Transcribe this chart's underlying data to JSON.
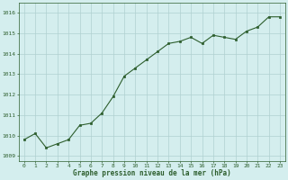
{
  "x": [
    0,
    1,
    2,
    3,
    4,
    5,
    6,
    7,
    8,
    9,
    10,
    11,
    12,
    13,
    14,
    15,
    16,
    17,
    18,
    19,
    20,
    21,
    22,
    23
  ],
  "y": [
    1009.8,
    1010.1,
    1009.4,
    1009.6,
    1009.8,
    1010.5,
    1010.6,
    1011.1,
    1011.9,
    1012.9,
    1013.3,
    1013.7,
    1014.1,
    1014.5,
    1014.6,
    1014.8,
    1014.5,
    1014.9,
    1014.8,
    1014.7,
    1015.1,
    1015.3,
    1015.8,
    1015.8
  ],
  "line_color": "#2d5e2d",
  "marker_color": "#2d5e2d",
  "bg_color": "#d4eeee",
  "grid_color": "#b0d0d0",
  "xlabel": "Graphe pression niveau de la mer (hPa)",
  "xlabel_color": "#2d5e2d",
  "tick_color": "#2d5e2d",
  "ylim": [
    1008.75,
    1016.5
  ],
  "yticks": [
    1009,
    1010,
    1011,
    1012,
    1013,
    1014,
    1015,
    1016
  ],
  "xtick_labels": [
    "0",
    "1",
    "2",
    "3",
    "4",
    "5",
    "6",
    "7",
    "8",
    "9",
    "10",
    "11",
    "12",
    "13",
    "14",
    "15",
    "16",
    "17",
    "18",
    "19",
    "20",
    "21",
    "22",
    "23"
  ],
  "figsize": [
    3.2,
    2.0
  ],
  "dpi": 100
}
